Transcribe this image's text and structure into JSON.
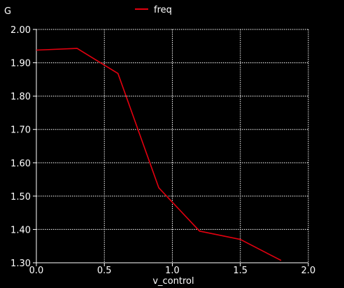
{
  "chart_data": {
    "type": "line",
    "unit_label": "G",
    "xlabel": "v_control",
    "ylabel": "",
    "xlim": [
      0.0,
      2.0
    ],
    "ylim": [
      1.3,
      2.0
    ],
    "x_ticks": [
      "0.0",
      "0.5",
      "1.0",
      "1.5",
      "2.0"
    ],
    "y_ticks": [
      "1.30",
      "1.40",
      "1.50",
      "1.60",
      "1.70",
      "1.80",
      "1.90",
      "2.00"
    ],
    "grid": true,
    "legend_position": "top-center",
    "series": [
      {
        "name": "freq",
        "color": "#e3000f",
        "x": [
          0.0,
          0.3,
          0.6,
          0.9,
          1.2,
          1.5,
          1.8
        ],
        "y": [
          1.938,
          1.943,
          1.868,
          1.525,
          1.395,
          1.37,
          1.307
        ]
      }
    ]
  }
}
